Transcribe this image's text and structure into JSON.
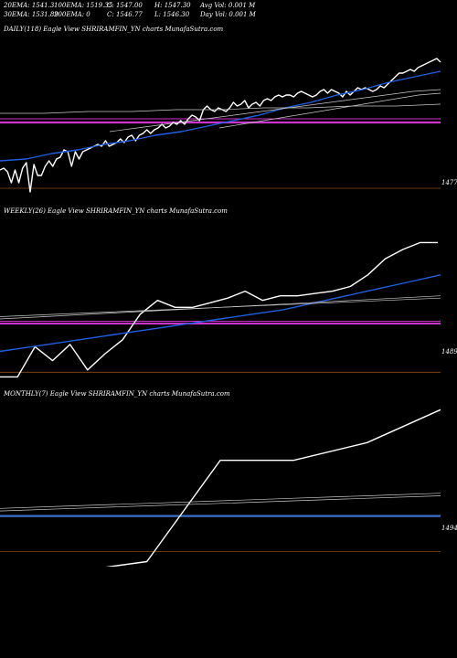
{
  "header": {
    "row1": [
      "20EMA: 1541.3",
      "100EMA: 1519.35",
      "C: 1547.00",
      "H: 1547.30",
      "Avg Vol: 0.001 M"
    ],
    "row2": [
      "30EMA: 1531.89",
      "200EMA: 0",
      "C: 1546.77",
      "L: 1546.30",
      "Day Vol: 0.001 M"
    ]
  },
  "panels": [
    {
      "title": "DAILY(118) Eagle  View  SHRIRAMFIN_YN  charts MunafaSutra.com",
      "level_label": "1477"
    },
    {
      "title": "WEEKLY(26) Eagle  View  SHRIRAMFIN_YN  charts MunafaSutra.com",
      "level_label": "1489"
    },
    {
      "title": "MONTHLY(7) Eagle  View  SHRIRAMFIN_YN  charts MunafaSutra.com",
      "level_label": "1494"
    }
  ],
  "colors": {
    "background": "#000000",
    "price": "#ffffff",
    "ema_fast": "#1f5fe0",
    "ema_slow": "#c8c8c8",
    "level": "#cc33cc",
    "ref": "#8a4a1a",
    "monthly_level": "#3a6fd0"
  },
  "chart_data": [
    {
      "type": "line",
      "title": "DAILY(118) Eagle  View  SHRIRAMFIN_YN  charts MunafaSutra.com",
      "ylim": [
        1470,
        1560
      ],
      "ref_level": 1477,
      "h_levels": [
        1513,
        1515
      ],
      "series": [
        {
          "values": [
            1487,
            1488,
            1486,
            1480,
            1487,
            1480,
            1488,
            1491,
            1475,
            1490,
            1484,
            1484,
            1489,
            1492,
            1489,
            1493,
            1494,
            1498,
            1497,
            1489,
            1497,
            1493,
            1497,
            1498,
            1499,
            1500,
            1501,
            1500,
            1503,
            1500,
            1501,
            1502,
            1504,
            1502,
            1505,
            1506,
            1503,
            1506,
            1507,
            1509,
            1507,
            1509,
            1510,
            1512,
            1510,
            1511,
            1513,
            1512,
            1514,
            1512,
            1515,
            1517,
            1516,
            1514,
            1520,
            1522,
            1520,
            1519,
            1521,
            1520,
            1519,
            1521,
            1524,
            1522,
            1523,
            1525,
            1521,
            1523,
            1524,
            1522,
            1525,
            1526,
            1525,
            1527,
            1528,
            1527,
            1528,
            1528,
            1527,
            1529,
            1530,
            1529,
            1528,
            1527,
            1528,
            1530,
            1531,
            1529,
            1531,
            1530,
            1529,
            1527,
            1530,
            1528,
            1530,
            1532,
            1531,
            1532,
            1531,
            1530,
            1531,
            1533,
            1532,
            1534,
            1536,
            1538,
            1540,
            1540,
            1541,
            1542,
            1541,
            1543,
            1544,
            1545,
            1546,
            1547,
            1548,
            1546
          ]
        },
        {
          "values": [
            1492,
            1493,
            1496,
            1498,
            1501,
            1503,
            1506,
            1508,
            1511,
            1514,
            1517,
            1521,
            1524,
            1528,
            1531,
            1535,
            1538,
            1541
          ]
        },
        {
          "values": [
            1508,
            1510,
            1512,
            1514,
            1516,
            1518,
            1520,
            1522,
            1524,
            1526,
            1528,
            1530,
            1531
          ]
        },
        {
          "values": [
            1510,
            1512,
            1514,
            1516,
            1518,
            1520,
            1522,
            1524,
            1526,
            1528,
            1529
          ]
        },
        {
          "values": [
            1518,
            1518,
            1519,
            1519,
            1520,
            1520,
            1521,
            1521,
            1522,
            1522,
            1523
          ]
        }
      ]
    },
    {
      "type": "line",
      "title": "WEEKLY(26) Eagle  View  SHRIRAMFIN_YN  charts MunafaSutra.com",
      "ylim": [
        1484,
        1555
      ],
      "ref_level": 1489,
      "h_levels": [
        1510,
        1511
      ],
      "series": [
        {
          "values": [
            1487,
            1487,
            1500,
            1494,
            1501,
            1490,
            1497,
            1503,
            1514,
            1520,
            1517,
            1517,
            1519,
            1521,
            1524,
            1520,
            1522,
            1522,
            1523,
            1524,
            1526,
            1531,
            1538,
            1542,
            1545,
            1545
          ]
        },
        {
          "values": [
            1498,
            1500,
            1502,
            1504,
            1506,
            1508,
            1510,
            1512,
            1514,
            1516,
            1519,
            1522,
            1525,
            1528,
            1531
          ]
        },
        {
          "values": [
            1512,
            1513,
            1514,
            1515,
            1516,
            1517,
            1518,
            1519,
            1520,
            1521,
            1522
          ]
        },
        {
          "values": [
            1513,
            1514,
            1515,
            1516,
            1517,
            1518,
            1519,
            1520,
            1521
          ]
        }
      ]
    },
    {
      "type": "line",
      "title": "MONTHLY(7) Eagle  View  SHRIRAMFIN_YN  charts MunafaSutra.com",
      "ylim": [
        1488,
        1553
      ],
      "ref_level": 1494,
      "h_levels": [
        1508
      ],
      "series": [
        {
          "values": [
            1486,
            1486,
            1490,
            1530,
            1530,
            1537,
            1550
          ]
        },
        {
          "values": [
            1511,
            1512,
            1513,
            1514,
            1515,
            1516,
            1517
          ]
        },
        {
          "values": [
            1510,
            1511,
            1512,
            1513,
            1514,
            1515,
            1516
          ]
        }
      ]
    }
  ]
}
